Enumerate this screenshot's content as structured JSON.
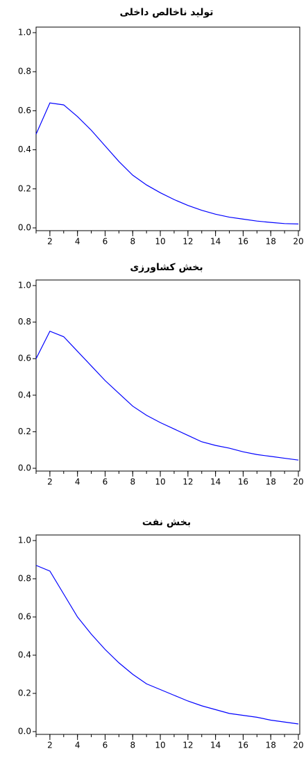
{
  "chart_data": [
    {
      "type": "line",
      "title": "تولید ناخالص داخلی",
      "x": [
        1,
        2,
        3,
        4,
        5,
        6,
        7,
        8,
        9,
        10,
        11,
        12,
        13,
        14,
        15,
        16,
        17,
        18,
        19,
        20
      ],
      "series": [
        {
          "color": "#0000ff",
          "values": [
            0.48,
            0.64,
            0.63,
            0.57,
            0.5,
            0.42,
            0.34,
            0.27,
            0.22,
            0.18,
            0.145,
            0.115,
            0.09,
            0.07,
            0.055,
            0.045,
            0.035,
            0.028,
            0.022,
            0.02
          ]
        }
      ],
      "xlim": [
        1,
        20
      ],
      "xticks": [
        2,
        4,
        6,
        8,
        10,
        12,
        14,
        16,
        18,
        20
      ],
      "ylim": [
        0,
        1
      ],
      "yticks": [
        {
          "value": 0,
          "label": "0.0"
        },
        {
          "value": 0.2,
          "label": "0.2"
        },
        {
          "value": 0.4,
          "label": "0.4"
        },
        {
          "value": 0.6,
          "label": "0.6"
        },
        {
          "value": 0.8,
          "label": "0.8"
        },
        {
          "value": 1,
          "label": "1.0"
        }
      ]
    },
    {
      "type": "line",
      "title": "بخش کشاورزی",
      "x": [
        1,
        2,
        3,
        4,
        5,
        6,
        7,
        8,
        9,
        10,
        11,
        12,
        13,
        14,
        15,
        16,
        17,
        18,
        19,
        20
      ],
      "series": [
        {
          "color": "#0000ff",
          "values": [
            0.6,
            0.75,
            0.72,
            0.64,
            0.56,
            0.48,
            0.41,
            0.34,
            0.29,
            0.25,
            0.215,
            0.18,
            0.145,
            0.125,
            0.11,
            0.09,
            0.075,
            0.065,
            0.055,
            0.045
          ]
        }
      ],
      "xlim": [
        1,
        20
      ],
      "xticks": [
        2,
        4,
        6,
        8,
        10,
        12,
        14,
        16,
        18,
        20
      ],
      "ylim": [
        0,
        1
      ],
      "yticks": [
        {
          "value": 0,
          "label": "0.0"
        },
        {
          "value": 0.2,
          "label": "0.2"
        },
        {
          "value": 0.4,
          "label": "0.4"
        },
        {
          "value": 0.6,
          "label": "0.6"
        },
        {
          "value": 0.8,
          "label": "0.8"
        },
        {
          "value": 1,
          "label": "1.0"
        }
      ]
    },
    {
      "type": "line",
      "title": "بخش نفت",
      "x": [
        1,
        2,
        3,
        4,
        5,
        6,
        7,
        8,
        9,
        10,
        11,
        12,
        13,
        14,
        15,
        16,
        17,
        18,
        19,
        20
      ],
      "series": [
        {
          "color": "#0000ff",
          "values": [
            0.87,
            0.84,
            0.72,
            0.6,
            0.51,
            0.43,
            0.36,
            0.3,
            0.25,
            0.22,
            0.19,
            0.16,
            0.135,
            0.115,
            0.095,
            0.085,
            0.075,
            0.06,
            0.05,
            0.04
          ]
        }
      ],
      "xlim": [
        1,
        20
      ],
      "xticks": [
        2,
        4,
        6,
        8,
        10,
        12,
        14,
        16,
        18,
        20
      ],
      "ylim": [
        0,
        1
      ],
      "yticks": [
        {
          "value": 0,
          "label": "0.0"
        },
        {
          "value": 0.2,
          "label": "0.2"
        },
        {
          "value": 0.4,
          "label": "0.4"
        },
        {
          "value": 0.6,
          "label": "0.6"
        },
        {
          "value": 0.8,
          "label": "0.8"
        },
        {
          "value": 1,
          "label": "1.0"
        }
      ]
    }
  ]
}
